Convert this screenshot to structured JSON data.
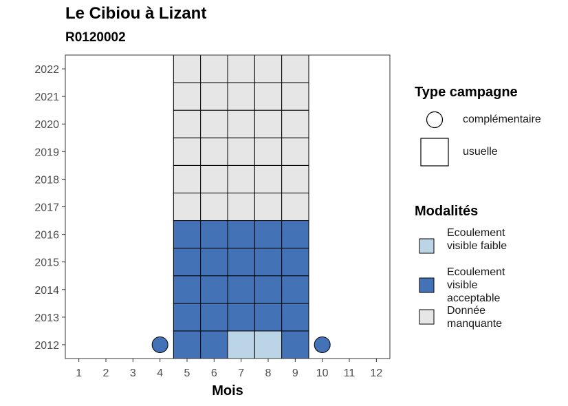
{
  "title": "Le Cibiou à Lizant",
  "subtitle": "R0120002",
  "chart_data": {
    "type": "heatmap",
    "xlabel": "Mois",
    "ylabel": "",
    "x_ticks": [
      "1",
      "2",
      "3",
      "4",
      "5",
      "6",
      "7",
      "8",
      "9",
      "10",
      "11",
      "12"
    ],
    "y_ticks": [
      "2012",
      "2013",
      "2014",
      "2015",
      "2016",
      "2017",
      "2018",
      "2019",
      "2020",
      "2021",
      "2022"
    ],
    "xlim": [
      0.5,
      12.5
    ],
    "ylim": [
      2011.5,
      2022.5
    ],
    "colors": {
      "faible": "#bcd5e6",
      "acceptable": "#4372b7",
      "manquante": "#e6e6e6"
    },
    "legend_type": {
      "title": "Type campagne",
      "items": [
        {
          "shape": "circle",
          "label": "complémentaire"
        },
        {
          "shape": "square",
          "label": "usuelle"
        }
      ]
    },
    "legend_modalites": {
      "title": "Modalités",
      "items": [
        {
          "key": "faible",
          "label": "Ecoulement visible faible"
        },
        {
          "key": "acceptable",
          "label": "Ecoulement visible acceptable"
        },
        {
          "key": "manquante",
          "label": "Donnée manquante"
        }
      ]
    },
    "cells": [
      {
        "year": 2012,
        "month": 4,
        "mod": "acceptable",
        "camp": "complémentaire"
      },
      {
        "year": 2012,
        "month": 5,
        "mod": "acceptable",
        "camp": "usuelle"
      },
      {
        "year": 2012,
        "month": 6,
        "mod": "acceptable",
        "camp": "usuelle"
      },
      {
        "year": 2012,
        "month": 7,
        "mod": "faible",
        "camp": "usuelle"
      },
      {
        "year": 2012,
        "month": 8,
        "mod": "faible",
        "camp": "usuelle"
      },
      {
        "year": 2012,
        "month": 9,
        "mod": "acceptable",
        "camp": "usuelle"
      },
      {
        "year": 2012,
        "month": 10,
        "mod": "acceptable",
        "camp": "complémentaire"
      },
      {
        "year": 2013,
        "month": 5,
        "mod": "acceptable",
        "camp": "usuelle"
      },
      {
        "year": 2013,
        "month": 6,
        "mod": "acceptable",
        "camp": "usuelle"
      },
      {
        "year": 2013,
        "month": 7,
        "mod": "acceptable",
        "camp": "usuelle"
      },
      {
        "year": 2013,
        "month": 8,
        "mod": "acceptable",
        "camp": "usuelle"
      },
      {
        "year": 2013,
        "month": 9,
        "mod": "acceptable",
        "camp": "usuelle"
      },
      {
        "year": 2014,
        "month": 5,
        "mod": "acceptable",
        "camp": "usuelle"
      },
      {
        "year": 2014,
        "month": 6,
        "mod": "acceptable",
        "camp": "usuelle"
      },
      {
        "year": 2014,
        "month": 7,
        "mod": "acceptable",
        "camp": "usuelle"
      },
      {
        "year": 2014,
        "month": 8,
        "mod": "acceptable",
        "camp": "usuelle"
      },
      {
        "year": 2014,
        "month": 9,
        "mod": "acceptable",
        "camp": "usuelle"
      },
      {
        "year": 2015,
        "month": 5,
        "mod": "acceptable",
        "camp": "usuelle"
      },
      {
        "year": 2015,
        "month": 6,
        "mod": "acceptable",
        "camp": "usuelle"
      },
      {
        "year": 2015,
        "month": 7,
        "mod": "acceptable",
        "camp": "usuelle"
      },
      {
        "year": 2015,
        "month": 8,
        "mod": "acceptable",
        "camp": "usuelle"
      },
      {
        "year": 2015,
        "month": 9,
        "mod": "acceptable",
        "camp": "usuelle"
      },
      {
        "year": 2016,
        "month": 5,
        "mod": "acceptable",
        "camp": "usuelle"
      },
      {
        "year": 2016,
        "month": 6,
        "mod": "acceptable",
        "camp": "usuelle"
      },
      {
        "year": 2016,
        "month": 7,
        "mod": "acceptable",
        "camp": "usuelle"
      },
      {
        "year": 2016,
        "month": 8,
        "mod": "acceptable",
        "camp": "usuelle"
      },
      {
        "year": 2016,
        "month": 9,
        "mod": "acceptable",
        "camp": "usuelle"
      },
      {
        "year": 2017,
        "month": 5,
        "mod": "manquante",
        "camp": "usuelle"
      },
      {
        "year": 2017,
        "month": 6,
        "mod": "manquante",
        "camp": "usuelle"
      },
      {
        "year": 2017,
        "month": 7,
        "mod": "manquante",
        "camp": "usuelle"
      },
      {
        "year": 2017,
        "month": 8,
        "mod": "manquante",
        "camp": "usuelle"
      },
      {
        "year": 2017,
        "month": 9,
        "mod": "manquante",
        "camp": "usuelle"
      },
      {
        "year": 2018,
        "month": 5,
        "mod": "manquante",
        "camp": "usuelle"
      },
      {
        "year": 2018,
        "month": 6,
        "mod": "manquante",
        "camp": "usuelle"
      },
      {
        "year": 2018,
        "month": 7,
        "mod": "manquante",
        "camp": "usuelle"
      },
      {
        "year": 2018,
        "month": 8,
        "mod": "manquante",
        "camp": "usuelle"
      },
      {
        "year": 2018,
        "month": 9,
        "mod": "manquante",
        "camp": "usuelle"
      },
      {
        "year": 2019,
        "month": 5,
        "mod": "manquante",
        "camp": "usuelle"
      },
      {
        "year": 2019,
        "month": 6,
        "mod": "manquante",
        "camp": "usuelle"
      },
      {
        "year": 2019,
        "month": 7,
        "mod": "manquante",
        "camp": "usuelle"
      },
      {
        "year": 2019,
        "month": 8,
        "mod": "manquante",
        "camp": "usuelle"
      },
      {
        "year": 2019,
        "month": 9,
        "mod": "manquante",
        "camp": "usuelle"
      },
      {
        "year": 2020,
        "month": 5,
        "mod": "manquante",
        "camp": "usuelle"
      },
      {
        "year": 2020,
        "month": 6,
        "mod": "manquante",
        "camp": "usuelle"
      },
      {
        "year": 2020,
        "month": 7,
        "mod": "manquante",
        "camp": "usuelle"
      },
      {
        "year": 2020,
        "month": 8,
        "mod": "manquante",
        "camp": "usuelle"
      },
      {
        "year": 2020,
        "month": 9,
        "mod": "manquante",
        "camp": "usuelle"
      },
      {
        "year": 2021,
        "month": 5,
        "mod": "manquante",
        "camp": "usuelle"
      },
      {
        "year": 2021,
        "month": 6,
        "mod": "manquante",
        "camp": "usuelle"
      },
      {
        "year": 2021,
        "month": 7,
        "mod": "manquante",
        "camp": "usuelle"
      },
      {
        "year": 2021,
        "month": 8,
        "mod": "manquante",
        "camp": "usuelle"
      },
      {
        "year": 2021,
        "month": 9,
        "mod": "manquante",
        "camp": "usuelle"
      },
      {
        "year": 2022,
        "month": 5,
        "mod": "manquante",
        "camp": "usuelle"
      },
      {
        "year": 2022,
        "month": 6,
        "mod": "manquante",
        "camp": "usuelle"
      },
      {
        "year": 2022,
        "month": 7,
        "mod": "manquante",
        "camp": "usuelle"
      },
      {
        "year": 2022,
        "month": 8,
        "mod": "manquante",
        "camp": "usuelle"
      },
      {
        "year": 2022,
        "month": 9,
        "mod": "manquante",
        "camp": "usuelle"
      }
    ]
  }
}
